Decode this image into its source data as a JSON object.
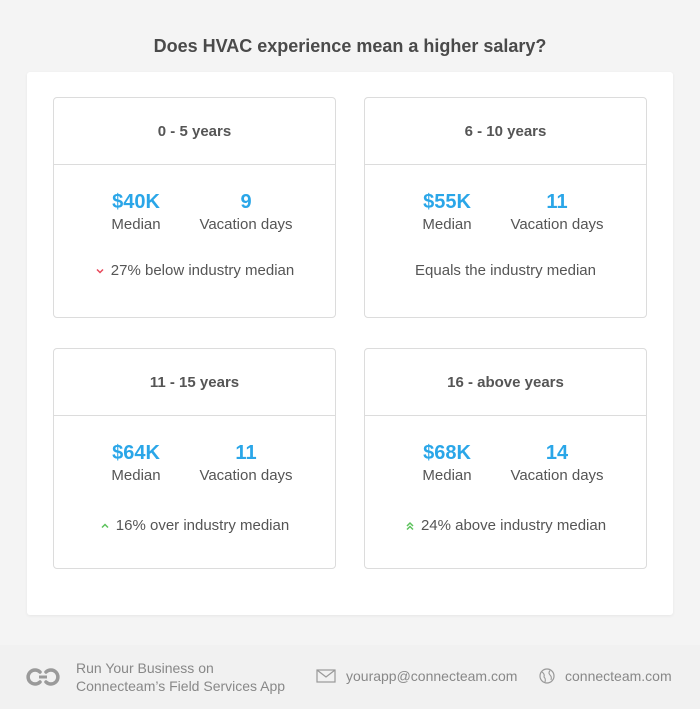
{
  "title": "Does HVAC experience mean a higher salary?",
  "cards": [
    {
      "range": "0 - 5 years",
      "median_value": "$40K",
      "median_label": "Median",
      "vacation_value": "9",
      "vacation_label": "Vacation days",
      "note": "27% below industry median",
      "trend": "down"
    },
    {
      "range": "6 - 10 years",
      "median_value": "$55K",
      "median_label": "Median",
      "vacation_value": "11",
      "vacation_label": "Vacation days",
      "note": "Equals the industry median",
      "trend": "none"
    },
    {
      "range": "11 - 15 years",
      "median_value": "$64K",
      "median_label": "Median",
      "vacation_value": "11",
      "vacation_label": "Vacation days",
      "note": "16% over industry median",
      "trend": "up"
    },
    {
      "range": "16 - above years",
      "median_value": "$68K",
      "median_label": "Median",
      "vacation_value": "14",
      "vacation_label": "Vacation days",
      "note": "24% above industry median",
      "trend": "double-up"
    }
  ],
  "footer": {
    "tagline_line1": "Run Your Business on",
    "tagline_line2": "Connecteam’s Field Services App",
    "email": "yourapp@connecteam.com",
    "website": "connecteam.com"
  },
  "colors": {
    "accent": "#2aa6e8",
    "down": "#e8485a",
    "up": "#5cc25c"
  }
}
